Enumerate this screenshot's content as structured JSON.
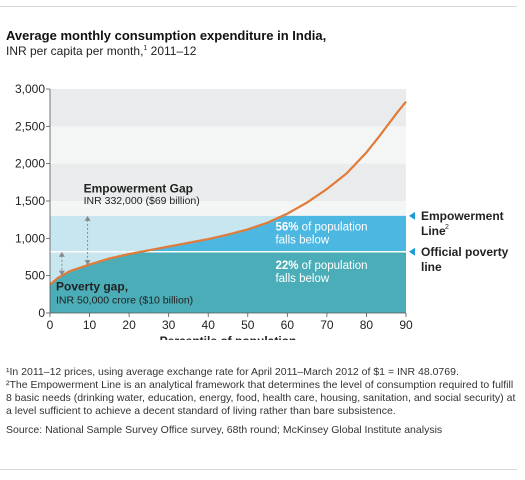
{
  "chart_data": {
    "type": "area",
    "title": "Average monthly consumption expenditure in India,",
    "subtitle_pre": "INR per capita per month,",
    "subtitle_sup": "1",
    "subtitle_post": " 2011–12",
    "xlabel": "Percentile of population",
    "ylabel": "",
    "xlim": [
      0,
      90
    ],
    "ylim": [
      0,
      3000
    ],
    "x_ticks": [
      0,
      10,
      20,
      30,
      40,
      50,
      60,
      70,
      80,
      90
    ],
    "y_ticks": [
      0,
      500,
      1000,
      1500,
      2000,
      2500,
      3000
    ],
    "y_tick_labels": [
      "0",
      "500",
      "1,000",
      "1,500",
      "2,000",
      "2,500",
      "3,000"
    ],
    "empowerment_line": 1300,
    "official_poverty_line": 820,
    "series": [
      {
        "x": [
          0,
          2,
          5,
          10,
          15,
          20,
          25,
          30,
          35,
          40,
          45,
          50,
          55,
          60,
          65,
          70,
          75,
          80,
          83,
          86,
          88,
          90
        ],
        "y": [
          380,
          470,
          560,
          650,
          730,
          790,
          840,
          890,
          940,
          990,
          1050,
          1120,
          1210,
          1330,
          1480,
          1660,
          1870,
          2150,
          2350,
          2560,
          2700,
          2830
        ]
      }
    ],
    "annotations": {
      "empowerment_gap_title": "Empowerment Gap",
      "empowerment_gap_value": "INR 332,000 ($69 billion)",
      "poverty_gap_title": "Poverty gap,",
      "poverty_gap_value": "INR 50,000 crore ($10 billion)",
      "pct_56": "56%",
      "pct_56_text_1": " of population",
      "pct_56_text_2": "falls below",
      "pct_22": "22%",
      "pct_22_text_1": " of population",
      "pct_22_text_2": "falls below",
      "empowerment_line_label_1": "Empowerment",
      "empowerment_line_label_2": "Line",
      "empowerment_line_sup": "2",
      "poverty_line_label_1": "Official poverty",
      "poverty_line_label_2": "line"
    },
    "colors": {
      "curve": "#e07b39",
      "above_band_light": "#c8e6f0",
      "between_fill": "#4cb7e0",
      "below_fill": "#4aadb8",
      "plot_bg_dark": "#e9ebec",
      "plot_bg_light": "#f4f5f5",
      "arrow": "#8a8a8a",
      "marker": "#1e9ad6"
    },
    "grid": true,
    "legend": "none"
  },
  "footnotes": {
    "note1": "¹In 2011–12 prices, using average exchange rate for April 2011–March 2012 of $1 = INR 48.0769.",
    "note2": "²The Empowerment Line is an analytical framework that determines the level of consumption required to fulfill 8 basic needs (drinking water, education, energy, food, health care, housing, sanitation, and social security) at a level sufficient to achieve a decent standard of living rather than bare subsistence.",
    "source": "Source: National Sample Survey Office survey, 68th round; McKinsey Global Institute analysis"
  }
}
